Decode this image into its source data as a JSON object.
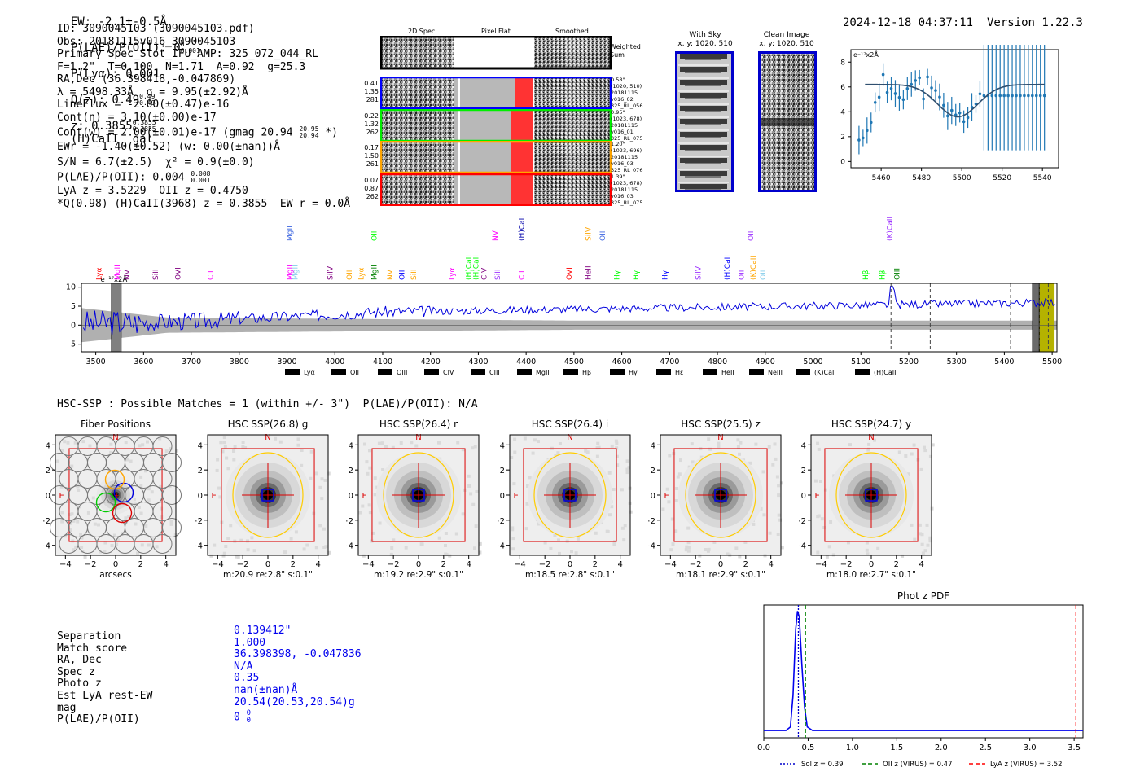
{
  "header": {
    "ew": "EW: -2.1±-0.5Å",
    "plae_label": "P(LAE)/P(OII): 0",
    "plae_hi": "0",
    "plae_lo": "0.001",
    "plya": "P(Lyα): 0.001",
    "qz_label": "Q(z): 0.49",
    "qz_hi": "0.49",
    "qz_lo": "0.49",
    "z_label": "z: 0.3855",
    "z_hi": "0.3855",
    "z_lo": "0.3855",
    "line_class": "(H)CaII  gal",
    "timestamp": "2024-12-18 04:37:11",
    "version": "Version 1.22.3"
  },
  "info": {
    "lines": [
      "ID: 3090045103 (3090045103.pdf)",
      "Obs: 20181115v016_3090045103",
      "Primary Spec_Slot_IFU_AMP: 325_072_044_RL",
      "F=1.2\"  T=0.100  N=1.71  A=0.92  g=25.3",
      "RA,Dec (36.398418,-0.047869)",
      "λ = 5498.33Å  σ = 9.95(±2.92)Å",
      "LineFlux = -2.00(±0.47)e-16",
      "Cont(n) = 3.10(±0.00)e-17"
    ],
    "contw": "Cont(w) = 2.00(±0.01)e-17 (gmag 20.94",
    "contw_hi": "20.95",
    "contw_lo": "20.94",
    "contw_end": "*)",
    "ewr": "EWr = -1.40(±0.52) (w: 0.00(±nan))Å",
    "sn": "S/N = 6.7(±2.5)  χ² = 0.9(±0.0)",
    "plae": "P(LAE)/P(OII): 0.004",
    "plae_hi": "0.008",
    "plae_lo": "0.001",
    "lya": "LyA z = 3.5229  OII z = 0.4750",
    "q": "*Q(0.98) (H)CaII(3968) z = 0.3855  EW r = 0.0Å"
  },
  "cutouts": {
    "headers": [
      "2D Spec",
      "Pixel Flat",
      "Smoothed"
    ],
    "weighted_sum": "Weighted Sum",
    "rows": [
      {
        "left": [
          "0.41",
          "1.35",
          "281"
        ],
        "right": [
          "0.58\"",
          "(1020, 510)",
          "20181115",
          "v016_02",
          "325_RL_056"
        ],
        "color": "#0000ff"
      },
      {
        "left": [
          "0.22",
          "1.32",
          "262"
        ],
        "right": [
          "0.95\"",
          "(1023, 678)",
          "20181115",
          "v016_01",
          "325_RL_075"
        ],
        "color": "#00ee00"
      },
      {
        "left": [
          "0.17",
          "1.50",
          "261"
        ],
        "right": [
          "1.20\"",
          "(1023, 696)",
          "20181115",
          "v016_03",
          "325_RL_076"
        ],
        "color": "#ffa500"
      },
      {
        "left": [
          "0.07",
          "0.87",
          "262"
        ],
        "right": [
          "1.39\"",
          "(1023, 678)",
          "20181115",
          "v016_03",
          "325_RL_075"
        ],
        "color": "#ff0000"
      }
    ]
  },
  "sky": {
    "with_sky_title": "With Sky",
    "with_sky_coords": "x, y: 1020, 510",
    "clean_title": "Clean Image",
    "clean_coords": "x, y: 1020, 510"
  },
  "zoom_plot": {
    "ylabel": "e⁻¹⁷x2Å",
    "xticks": [
      "5460",
      "5480",
      "5500",
      "5520",
      "5540"
    ],
    "yticks": [
      "0",
      "2",
      "4",
      "6",
      "8"
    ]
  },
  "spectrum": {
    "ylabel": "e⁻¹⁷x2Å",
    "yticks": [
      "10",
      "5",
      "0",
      "-5"
    ],
    "xticks": [
      "3500",
      "3600",
      "3700",
      "3800",
      "3900",
      "4000",
      "4100",
      "4200",
      "4300",
      "4400",
      "4500",
      "4600",
      "4700",
      "4800",
      "4900",
      "5000",
      "5100",
      "5200",
      "5300",
      "5400",
      "5500"
    ],
    "legend": [
      {
        "label": "Lyα",
        "color": "#ff0000"
      },
      {
        "label": "OII",
        "color": "#008000"
      },
      {
        "label": "OIII",
        "color": "#00ff00"
      },
      {
        "label": "CIV",
        "color": "#9b30ff"
      },
      {
        "label": "CIII",
        "color": "#800080"
      },
      {
        "label": "MgII",
        "color": "#ff00ff"
      },
      {
        "label": "Hβ",
        "color": "#0000ff"
      },
      {
        "label": "Hγ",
        "color": "#4169e1"
      },
      {
        "label": "Hε",
        "color": "#4a6cf0"
      },
      {
        "label": "HeII",
        "color": "#ffa500"
      },
      {
        "label": "NeIII",
        "color": "#ff1493"
      },
      {
        "label": "(K)CaII",
        "color": "#87ceeb"
      },
      {
        "label": "(H)CaII",
        "color": "#87ceeb"
      }
    ],
    "top_labels": [
      {
        "t": "Lyα",
        "c": "#ff0000",
        "w": 3507
      },
      {
        "t": "MgII",
        "c": "#ff00ff",
        "w": 3545
      },
      {
        "t": "NV",
        "c": "#800080",
        "w": 3565
      },
      {
        "t": "SiII",
        "c": "#800080",
        "w": 3625
      },
      {
        "t": "OVI",
        "c": "#800080",
        "w": 3672
      },
      {
        "t": "CII",
        "c": "#ff00ff",
        "w": 3740
      },
      {
        "t": "MgII",
        "c": "#ff00ff",
        "w": 3905
      },
      {
        "t": "MgII",
        "c": "#87ceeb",
        "w": 3917
      },
      {
        "t": "SiIV",
        "c": "#800080",
        "w": 3990
      },
      {
        "t": "OII",
        "c": "#ffa500",
        "w": 4030
      },
      {
        "t": "Lyα",
        "c": "#ffa500",
        "w": 4055
      },
      {
        "t": "MgII",
        "c": "#008000",
        "w": 4082
      },
      {
        "t": "NV",
        "c": "#ffa500",
        "w": 4115
      },
      {
        "t": "OII",
        "c": "#0000ff",
        "w": 4140
      },
      {
        "t": "SiII",
        "c": "#ffa500",
        "w": 4165
      },
      {
        "t": "Lyα",
        "c": "#ff00ff",
        "w": 4245
      },
      {
        "t": "(H)CaII",
        "c": "#00ff00",
        "w": 4280
      },
      {
        "t": "(H)CaII",
        "c": "#00ff00",
        "w": 4295
      },
      {
        "t": "CIV",
        "c": "#800080",
        "w": 4312
      },
      {
        "t": "SiII",
        "c": "#9b30ff",
        "w": 4340
      },
      {
        "t": "CII",
        "c": "#ff00ff",
        "w": 4390
      },
      {
        "t": "OVI",
        "c": "#ff0000",
        "w": 4490
      },
      {
        "t": "HeII",
        "c": "#800080",
        "w": 4530
      },
      {
        "t": "Hγ",
        "c": "#00ff00",
        "w": 4590
      },
      {
        "t": "Hγ",
        "c": "#00ff00",
        "w": 4630
      },
      {
        "t": "Hγ",
        "c": "#0000ff",
        "w": 4690
      },
      {
        "t": "SiIV",
        "c": "#9b30ff",
        "w": 4760
      },
      {
        "t": "(H)CaII",
        "c": "#0000ff",
        "w": 4820
      },
      {
        "t": "OII",
        "c": "#9b30ff",
        "w": 4850
      },
      {
        "t": "(K)CaII",
        "c": "#ffa500",
        "w": 4875
      },
      {
        "t": "OII",
        "c": "#87ceeb",
        "w": 4895
      },
      {
        "t": "Hβ",
        "c": "#00ff00",
        "w": 5110
      },
      {
        "t": "Hβ",
        "c": "#00ff00",
        "w": 5145
      },
      {
        "t": "OIII",
        "c": "#008000",
        "w": 5175
      }
    ],
    "upper_labels": [
      {
        "t": "MgII",
        "c": "#4169e1",
        "w": 3905
      },
      {
        "t": "OII",
        "c": "#00ff00",
        "w": 4082
      },
      {
        "t": "NV",
        "c": "#ff00ff",
        "w": 4335
      },
      {
        "t": "(H)CaII",
        "c": "#0000aa",
        "w": 4390
      },
      {
        "t": "SiIV",
        "c": "#ffa500",
        "w": 4530
      },
      {
        "t": "OII",
        "c": "#4169e1",
        "w": 4560
      },
      {
        "t": "OII",
        "c": "#9b30ff",
        "w": 4870
      },
      {
        "t": "(K)CaII",
        "c": "#9b30ff",
        "w": 5160
      }
    ]
  },
  "hsc": {
    "title": "HSC-SSP : Possible Matches = 1 (within +/- 3\")  P(LAE)/P(OII): N/A",
    "panels": [
      {
        "title": "Fiber Positions",
        "xlabel": "arcsecs",
        "caption": ""
      },
      {
        "title": "HSC SSP(26.8) g",
        "xlabel": "",
        "caption": "m:20.9  re:2.8\"  s:0.1\""
      },
      {
        "title": "HSC SSP(26.4) r",
        "xlabel": "",
        "caption": "m:19.2  re:2.9\"  s:0.1\""
      },
      {
        "title": "HSC SSP(26.4) i",
        "xlabel": "",
        "caption": "m:18.5  re:2.8\"  s:0.1\""
      },
      {
        "title": "HSC SSP(25.5) z",
        "xlabel": "",
        "caption": "m:18.1  re:2.9\"  s:0.1\""
      },
      {
        "title": "HSC SSP(24.7) y",
        "xlabel": "",
        "caption": "m:18.0  re:2.7\"  s:0.1\""
      }
    ],
    "xticks": [
      "−4",
      "−2",
      "0",
      "2",
      "4"
    ],
    "yticks": [
      "4",
      "2",
      "0",
      "−2",
      "−4"
    ],
    "north": "N",
    "east": "E"
  },
  "match": {
    "labels": [
      "Separation",
      "Match score",
      "RA, Dec",
      "Spec z",
      "Photo z",
      "Est LyA rest-EW",
      "mag",
      "P(LAE)/P(OII)"
    ],
    "values": [
      "0.139412\"",
      "1.000",
      "36.398398, -0.047836",
      "N/A",
      "0.35",
      "nan(±nan)Å",
      "20.54(20.53,20.54)g",
      "0"
    ],
    "plae_hi": "0",
    "plae_lo": "0"
  },
  "photz": {
    "title": "Phot z PDF",
    "xticks": [
      "0.0",
      "0.5",
      "1.0",
      "1.5",
      "2.0",
      "2.5",
      "3.0",
      "3.5"
    ],
    "legend": [
      {
        "label": "Sol z = 0.39",
        "color": "#0000cc"
      },
      {
        "label": "OII z (VIRUS) = 0.47",
        "color": "#008000"
      },
      {
        "label": "LyA z (VIRUS) = 3.52",
        "color": "#ff0000"
      }
    ]
  }
}
